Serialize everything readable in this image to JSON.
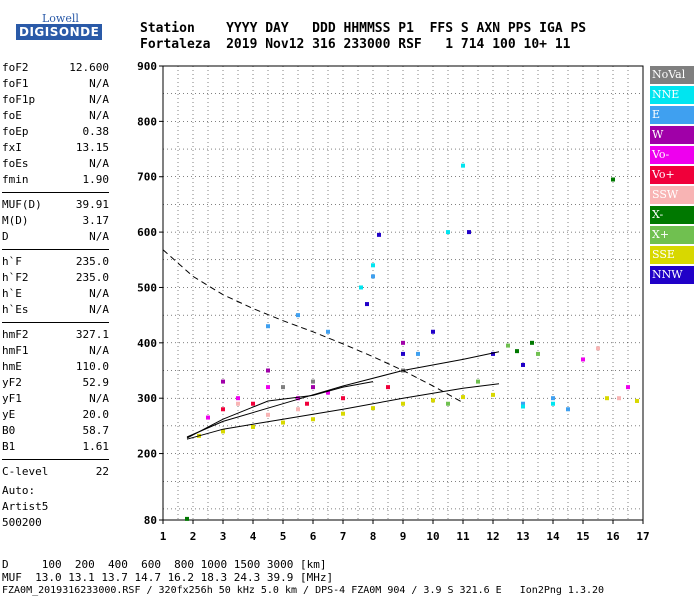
{
  "logo": {
    "line1": "Lowell",
    "line2": "DIGISONDE"
  },
  "header": {
    "row1": "Station    YYYY DAY   DDD HHMMSS P1  FFS S AXN PPS IGA PS",
    "row2": "Fortaleza  2019 Nov12 316 233000 RSF   1 714 100 10+ 11"
  },
  "params": [
    [
      {
        "name": "foF2",
        "value": "12.600"
      },
      {
        "name": "foF1",
        "value": "N/A"
      },
      {
        "name": "foF1p",
        "value": "N/A"
      },
      {
        "name": "foE",
        "value": "N/A"
      },
      {
        "name": "foEp",
        "value": "0.38"
      },
      {
        "name": "fxI",
        "value": "13.15"
      },
      {
        "name": "foEs",
        "value": "N/A"
      },
      {
        "name": "fmin",
        "value": "1.90"
      }
    ],
    [
      {
        "name": "MUF(D)",
        "value": "39.91"
      },
      {
        "name": "M(D)",
        "value": "3.17"
      },
      {
        "name": "D",
        "value": "N/A"
      }
    ],
    [
      {
        "name": "h`F",
        "value": "235.0"
      },
      {
        "name": "h`F2",
        "value": "235.0"
      },
      {
        "name": "h`E",
        "value": "N/A"
      },
      {
        "name": "h`Es",
        "value": "N/A"
      }
    ],
    [
      {
        "name": "hmF2",
        "value": "327.1"
      },
      {
        "name": "hmF1",
        "value": "N/A"
      },
      {
        "name": "hmE",
        "value": "110.0"
      },
      {
        "name": "yF2",
        "value": "52.9"
      },
      {
        "name": "yF1",
        "value": "N/A"
      },
      {
        "name": "yE",
        "value": "20.0"
      },
      {
        "name": "B0",
        "value": "58.7"
      },
      {
        "name": "B1",
        "value": "1.61"
      }
    ],
    [
      {
        "name": "C-level",
        "value": "22"
      }
    ]
  ],
  "auto": {
    "line1": "Auto:",
    "line2": "Artist5",
    "line3": "500200"
  },
  "legend": [
    {
      "label": "NoVal",
      "color": "#7f7f7f"
    },
    {
      "label": "NNE",
      "color": "#00e5f0"
    },
    {
      "label": "E",
      "color": "#3fa0f0"
    },
    {
      "label": "W",
      "color": "#a000a8"
    },
    {
      "label": "Vo-",
      "color": "#ee00ee"
    },
    {
      "label": "Vo+",
      "color": "#f0003a"
    },
    {
      "label": "SSW",
      "color": "#f8b4b4"
    },
    {
      "label": "X-",
      "color": "#007800"
    },
    {
      "label": "X+",
      "color": "#70c050"
    },
    {
      "label": "SSE",
      "color": "#d8d800"
    },
    {
      "label": "NNW",
      "color": "#2000c8"
    }
  ],
  "footer": {
    "d_line": "D     100  200  400  600  800 1000 1500 3000 [km]",
    "muf_line": "MUF  13.0 13.1 13.7 14.7 16.2 18.3 24.3 39.9 [MHz]",
    "file_line": "FZA0M_2019316233000.RSF / 320fx256h 50 kHz 5.0 km / DPS-4 FZA0M 904 / 3.9 S 321.6 E   Ion2Png 1.3.20"
  },
  "chart_data": {
    "type": "scatter",
    "xlim": [
      1,
      17
    ],
    "ylim": [
      80,
      900
    ],
    "x_ticks": [
      1,
      2,
      3,
      4,
      5,
      6,
      7,
      8,
      9,
      10,
      11,
      12,
      13,
      14,
      15,
      16,
      17
    ],
    "y_ticks": [
      80,
      200,
      300,
      400,
      500,
      600,
      700,
      800,
      900
    ],
    "grid": true,
    "legend_position": "right",
    "series": [
      {
        "name": "SSE",
        "color": "#d8d800",
        "points": [
          [
            2.2,
            232
          ],
          [
            3.0,
            240
          ],
          [
            4.0,
            248
          ],
          [
            5.0,
            256
          ],
          [
            6.0,
            262
          ],
          [
            7.0,
            272
          ],
          [
            8.0,
            282
          ],
          [
            9.0,
            290
          ],
          [
            10.0,
            296
          ],
          [
            11.0,
            302
          ],
          [
            12.0,
            306
          ],
          [
            15.8,
            300
          ],
          [
            16.8,
            295
          ]
        ]
      },
      {
        "name": "E",
        "color": "#3fa0f0",
        "points": [
          [
            4.5,
            430
          ],
          [
            5.5,
            450
          ],
          [
            6.5,
            420
          ],
          [
            8.0,
            520
          ],
          [
            9.5,
            380
          ],
          [
            13.0,
            290
          ],
          [
            14.0,
            300
          ],
          [
            14.5,
            280
          ]
        ]
      },
      {
        "name": "NNE",
        "color": "#00e5f0",
        "points": [
          [
            7.6,
            500
          ],
          [
            8.0,
            540
          ],
          [
            10.5,
            600
          ],
          [
            11.0,
            720
          ],
          [
            13.0,
            285
          ],
          [
            14.0,
            290
          ]
        ]
      },
      {
        "name": "NNW",
        "color": "#2000c8",
        "points": [
          [
            7.8,
            470
          ],
          [
            8.2,
            595
          ],
          [
            9.0,
            380
          ],
          [
            10.0,
            420
          ],
          [
            11.2,
            600
          ],
          [
            12.0,
            380
          ],
          [
            13.0,
            360
          ]
        ]
      },
      {
        "name": "Vo-",
        "color": "#ee00ee",
        "points": [
          [
            2.5,
            265
          ],
          [
            3.5,
            300
          ],
          [
            4.5,
            320
          ],
          [
            5.5,
            300
          ],
          [
            6.5,
            310
          ],
          [
            15.0,
            370
          ],
          [
            16.5,
            320
          ]
        ]
      },
      {
        "name": "Vo+",
        "color": "#f0003a",
        "points": [
          [
            3.0,
            280
          ],
          [
            4.0,
            290
          ],
          [
            5.8,
            290
          ],
          [
            7.0,
            300
          ],
          [
            8.5,
            320
          ]
        ]
      },
      {
        "name": "SSW",
        "color": "#f8b4b4",
        "points": [
          [
            3.5,
            290
          ],
          [
            4.5,
            270
          ],
          [
            5.5,
            280
          ],
          [
            15.5,
            390
          ],
          [
            16.2,
            300
          ]
        ]
      },
      {
        "name": "W",
        "color": "#a000a8",
        "points": [
          [
            3.0,
            330
          ],
          [
            4.5,
            350
          ],
          [
            6.0,
            320
          ],
          [
            9.0,
            400
          ]
        ]
      },
      {
        "name": "X-",
        "color": "#007800",
        "points": [
          [
            1.8,
            82
          ],
          [
            12.8,
            385
          ],
          [
            13.3,
            400
          ],
          [
            16.0,
            695
          ]
        ]
      },
      {
        "name": "X+",
        "color": "#70c050",
        "points": [
          [
            10.5,
            290
          ],
          [
            11.5,
            330
          ],
          [
            12.5,
            395
          ],
          [
            13.5,
            380
          ]
        ]
      },
      {
        "name": "NoVal",
        "color": "#7f7f7f",
        "points": [
          [
            5.0,
            320
          ],
          [
            6.0,
            330
          ],
          [
            9.0,
            350
          ]
        ]
      }
    ],
    "curves": [
      {
        "style": "dashed",
        "points": [
          [
            1,
            568
          ],
          [
            2,
            520
          ],
          [
            3,
            487
          ],
          [
            4,
            462
          ],
          [
            5,
            440
          ],
          [
            6,
            420
          ],
          [
            7,
            398
          ],
          [
            8,
            375
          ],
          [
            9,
            350
          ],
          [
            10,
            322
          ],
          [
            11,
            292
          ]
        ]
      },
      {
        "style": "solid",
        "points": [
          [
            1.8,
            226
          ],
          [
            3,
            244
          ],
          [
            5,
            262
          ],
          [
            7,
            280
          ],
          [
            9,
            300
          ],
          [
            11,
            318
          ],
          [
            12.2,
            326
          ]
        ]
      },
      {
        "style": "solid",
        "points": [
          [
            1.8,
            230
          ],
          [
            3,
            258
          ],
          [
            5,
            290
          ],
          [
            7,
            322
          ],
          [
            9,
            350
          ],
          [
            11,
            370
          ],
          [
            12.2,
            384
          ]
        ]
      },
      {
        "style": "solid",
        "points": [
          [
            1.8,
            228
          ],
          [
            3.0,
            262
          ],
          [
            4.5,
            295
          ],
          [
            6.0,
            305
          ],
          [
            7.0,
            320
          ],
          [
            8.0,
            330
          ]
        ]
      }
    ]
  }
}
